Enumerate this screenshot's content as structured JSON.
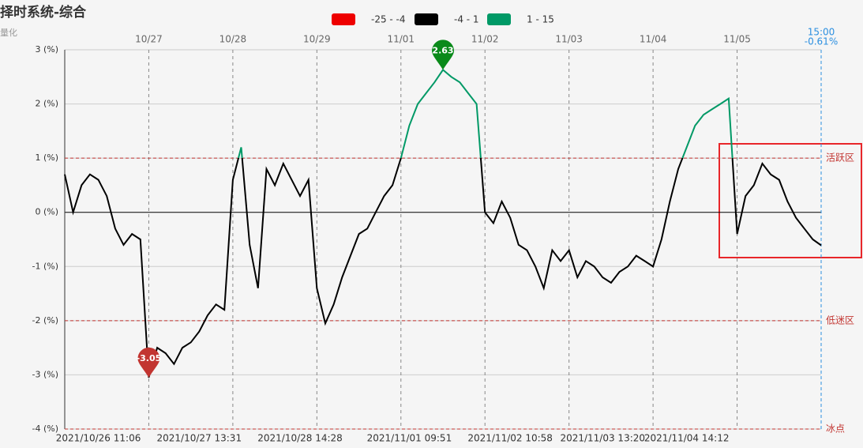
{
  "chart_data": {
    "type": "line",
    "title": "择时系统-综合",
    "subtitle": "量化",
    "end_time": "15:00",
    "end_value_label": "-0.61%",
    "pieces": [
      {
        "min": -25,
        "max": -4,
        "label": "-25 - -4",
        "color": "#ee0000"
      },
      {
        "min": -4,
        "max": 1,
        "label": "-4 - 1",
        "color": "#000000"
      },
      {
        "min": 1,
        "max": 15,
        "label": "1 - 15",
        "color": "#009966"
      }
    ],
    "mark_lines": [
      {
        "value": 1,
        "label": "活跃区"
      },
      {
        "value": -2,
        "label": "低迷区"
      },
      {
        "value": -4,
        "label": "冰点"
      }
    ],
    "ylim": [
      -4,
      3
    ],
    "yticks": [
      {
        "value": -4,
        "label": "-4 (%)"
      },
      {
        "value": -3,
        "label": "-3 (%)"
      },
      {
        "value": -2,
        "label": "-2 (%)"
      },
      {
        "value": -1,
        "label": "-1 (%)"
      },
      {
        "value": 0,
        "label": "0 (%)"
      },
      {
        "value": 1,
        "label": "1 (%)"
      },
      {
        "value": 2,
        "label": "2 (%)"
      },
      {
        "value": 3,
        "label": "3 (%)"
      }
    ],
    "grid": true,
    "categories": [
      null,
      null,
      null,
      null,
      "2021/10/26 11:06",
      null,
      null,
      null,
      null,
      null,
      null,
      null,
      null,
      null,
      null,
      null,
      "2021/10/27 13:31",
      null,
      null,
      null,
      null,
      null,
      null,
      null,
      null,
      null,
      null,
      null,
      "2021/10/28 14:28",
      null,
      null,
      null,
      null,
      null,
      null,
      null,
      null,
      null,
      null,
      null,
      null,
      "2021/11/01 09:51",
      null,
      null,
      null,
      null,
      null,
      null,
      null,
      null,
      null,
      null,
      null,
      "2021/11/02 10:58",
      null,
      null,
      null,
      null,
      null,
      null,
      null,
      null,
      null,
      null,
      "2021/11/03 13:20",
      null,
      null,
      null,
      null,
      null,
      null,
      null,
      null,
      null,
      "2021/11/04 14:12",
      null,
      null,
      null,
      null,
      null,
      null,
      null,
      null,
      null,
      null,
      null,
      null,
      null,
      null,
      null,
      null
    ],
    "top_categories": [
      null,
      null,
      null,
      null,
      null,
      null,
      null,
      null,
      null,
      null,
      "10/27",
      null,
      null,
      null,
      null,
      null,
      null,
      null,
      null,
      null,
      "10/28",
      null,
      null,
      null,
      null,
      null,
      null,
      null,
      null,
      null,
      "10/29",
      null,
      null,
      null,
      null,
      null,
      null,
      null,
      null,
      null,
      "11/01",
      null,
      null,
      null,
      null,
      null,
      null,
      null,
      null,
      null,
      "11/02",
      null,
      null,
      null,
      null,
      null,
      null,
      null,
      null,
      null,
      "11/03",
      null,
      null,
      null,
      null,
      null,
      null,
      null,
      null,
      null,
      "11/04",
      null,
      null,
      null,
      null,
      null,
      null,
      null,
      null,
      null,
      "11/05",
      null,
      null,
      null,
      null,
      null,
      null,
      null,
      null,
      null,
      null
    ],
    "series": [
      {
        "values": [
          0.7,
          0.0,
          0.5,
          0.7,
          0.6,
          0.3,
          -0.3,
          -0.6,
          -0.4,
          -0.5,
          -3.05,
          -2.5,
          -2.6,
          -2.8,
          -2.5,
          -2.4,
          -2.2,
          -1.9,
          -1.7,
          -1.8,
          0.6,
          1.2,
          -0.6,
          -1.4,
          0.8,
          0.5,
          0.9,
          0.6,
          0.3,
          0.6,
          -1.4,
          -2.05,
          -1.7,
          -1.2,
          -0.8,
          -0.4,
          -0.3,
          0.0,
          0.3,
          0.5,
          1.0,
          1.6,
          2.0,
          2.2,
          2.4,
          2.63,
          2.5,
          2.4,
          2.2,
          2.0,
          0.0,
          -0.2,
          0.2,
          -0.1,
          -0.6,
          -0.7,
          -1.0,
          -1.4,
          -0.7,
          -0.9,
          -0.7,
          -1.2,
          -0.9,
          -1.0,
          -1.2,
          -1.3,
          -1.1,
          -1.0,
          -0.8,
          -0.9,
          -1.0,
          -0.5,
          0.2,
          0.8,
          1.2,
          1.6,
          1.8,
          1.9,
          2.0,
          2.1,
          -0.4,
          0.3,
          0.5,
          0.9,
          0.7,
          0.6,
          0.2,
          -0.1,
          -0.3,
          -0.5,
          -0.61
        ]
      }
    ]
  }
}
